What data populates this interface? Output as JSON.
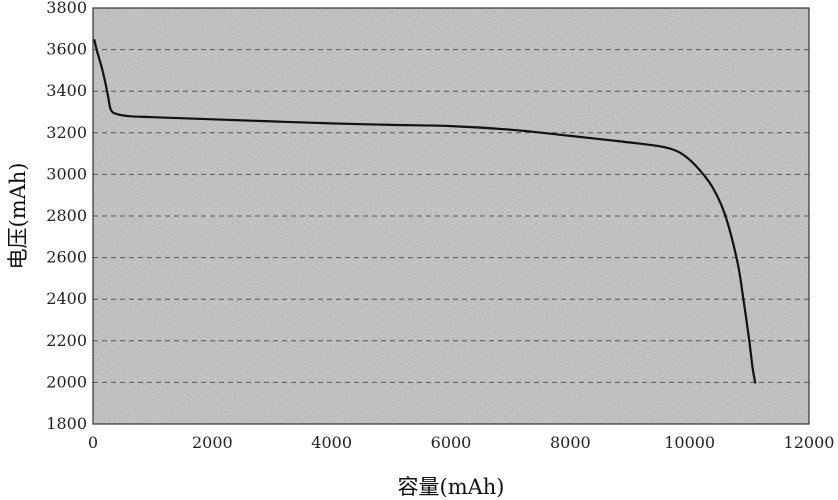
{
  "chart_data": {
    "type": "line",
    "xlabel": "容量(mAh)",
    "ylabel": "电压(mAh)",
    "xlim": [
      0,
      12000
    ],
    "ylim": [
      1800,
      3800
    ],
    "xticks": [
      0,
      2000,
      4000,
      6000,
      8000,
      10000,
      12000
    ],
    "yticks": [
      1800,
      2000,
      2200,
      2400,
      2600,
      2800,
      3000,
      3200,
      3400,
      3600,
      3800
    ],
    "grid": "horizontal-dashed",
    "colors": {
      "plot_background": "#c8c8c8",
      "line": "#111111",
      "grid": "#555555"
    },
    "series": [
      {
        "x": [
          20,
          60,
          100,
          150,
          200,
          250,
          300,
          400,
          600,
          1000,
          2000,
          3000,
          4000,
          5000,
          6000,
          7000,
          8000,
          8800,
          9500,
          9800,
          10000,
          10200,
          10400,
          10600,
          10800,
          10900,
          11000,
          11050,
          11100
        ],
        "y": [
          3650,
          3600,
          3560,
          3510,
          3450,
          3380,
          3310,
          3290,
          3280,
          3275,
          3265,
          3255,
          3245,
          3238,
          3232,
          3215,
          3185,
          3160,
          3135,
          3110,
          3070,
          3010,
          2930,
          2800,
          2580,
          2400,
          2200,
          2080,
          1995
        ]
      }
    ]
  }
}
